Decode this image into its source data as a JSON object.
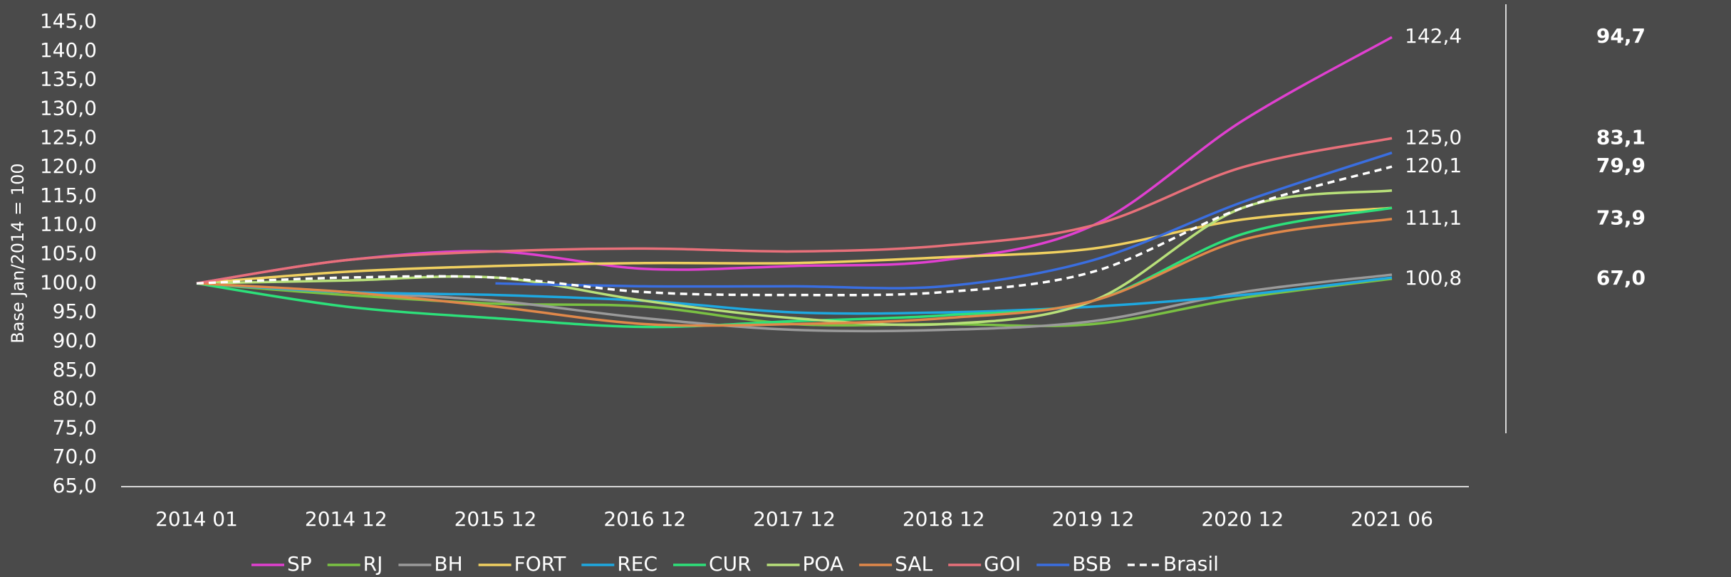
{
  "chart_data": {
    "type": "line",
    "y_label": "Base  Jan/2014 = 100",
    "categories": [
      "2014 01",
      "2014 12",
      "2015 12",
      "2016 12",
      "2017 12",
      "2018 12",
      "2019 12",
      "2020 12",
      "2021 06"
    ],
    "ylim": [
      65,
      145
    ],
    "yticks": [
      {
        "value": 65,
        "label": "65,0"
      },
      {
        "value": 70,
        "label": "70,0"
      },
      {
        "value": 75,
        "label": "75,0"
      },
      {
        "value": 80,
        "label": "80,0"
      },
      {
        "value": 85,
        "label": "85,0"
      },
      {
        "value": 90,
        "label": "90,0"
      },
      {
        "value": 95,
        "label": "95,0"
      },
      {
        "value": 100,
        "label": "100,0"
      },
      {
        "value": 105,
        "label": "105,0"
      },
      {
        "value": 110,
        "label": "110,0"
      },
      {
        "value": 115,
        "label": "115,0"
      },
      {
        "value": 120,
        "label": "120,0"
      },
      {
        "value": 125,
        "label": "125,0"
      },
      {
        "value": 130,
        "label": "130,0"
      },
      {
        "value": 135,
        "label": "135,0"
      },
      {
        "value": 140,
        "label": "140,0"
      },
      {
        "value": 145,
        "label": "145,0"
      }
    ],
    "grid": false,
    "legend": "bottom",
    "series": [
      {
        "name": "SP",
        "color": "#e040d0",
        "values": [
          100,
          104,
          105.5,
          102.5,
          103,
          104,
          110,
          128,
          142.4
        ],
        "value_labels": [
          null,
          null,
          null,
          null,
          null,
          null,
          null,
          null,
          "142,4"
        ]
      },
      {
        "name": "RJ",
        "color": "#7ac143",
        "values": [
          100,
          98,
          96.5,
          96,
          93,
          93,
          93,
          97.5,
          100.8
        ],
        "value_labels": [
          null,
          null,
          null,
          null,
          null,
          null,
          null,
          null,
          "100,8"
        ]
      },
      {
        "name": "BH",
        "color": "#9a9a9a",
        "values": [
          100,
          98.5,
          97,
          94,
          92,
          92,
          93.5,
          98.5,
          101.5
        ]
      },
      {
        "name": "FORT",
        "color": "#f0d060",
        "values": [
          100,
          102,
          103,
          103.5,
          103.5,
          104.5,
          106,
          111,
          113
        ]
      },
      {
        "name": "REC",
        "color": "#1ea8e0",
        "values": [
          100,
          98.5,
          98,
          97,
          95,
          95,
          96,
          98,
          101
        ]
      },
      {
        "name": "CUR",
        "color": "#2de07a",
        "values": [
          100,
          96,
          94,
          92.5,
          93.5,
          94.5,
          97,
          108.5,
          113
        ]
      },
      {
        "name": "POA",
        "color": "#b8e07a",
        "values": [
          100,
          100.5,
          101,
          97,
          94,
          93,
          97,
          113,
          116
        ]
      },
      {
        "name": "SAL",
        "color": "#e0884a",
        "values": [
          100,
          98.5,
          96,
          93,
          93,
          94,
          97,
          107.5,
          111.1
        ],
        "value_labels": [
          null,
          null,
          null,
          null,
          null,
          null,
          null,
          null,
          "111,1"
        ]
      },
      {
        "name": "GOI",
        "color": "#e8707a",
        "values": [
          100,
          104,
          105.5,
          106,
          105.5,
          106.5,
          110,
          120,
          125
        ],
        "value_labels": [
          null,
          null,
          null,
          null,
          null,
          null,
          null,
          null,
          "125,0"
        ]
      },
      {
        "name": "BSB",
        "color": "#3a6ee0",
        "values": [
          null,
          null,
          100,
          99.5,
          99.5,
          99.5,
          104,
          114,
          122.5
        ]
      },
      {
        "name": "Brasil",
        "color": "#ffffff",
        "dashed": true,
        "values": [
          100,
          101,
          101,
          98.5,
          98,
          98.5,
          102,
          113,
          120.1
        ],
        "value_labels": [
          null,
          null,
          null,
          null,
          null,
          null,
          null,
          null,
          "120,1"
        ]
      }
    ],
    "annotations": [
      {
        "text": "94,7",
        "color": "#e040d0"
      },
      {
        "text": "67,0",
        "color": "#7ac143"
      },
      {
        "text": "73,9",
        "color": "#e0884a"
      },
      {
        "text": "83,1",
        "color": "#e8707a"
      },
      {
        "text": "79,9",
        "color": "#ffffff"
      }
    ]
  }
}
